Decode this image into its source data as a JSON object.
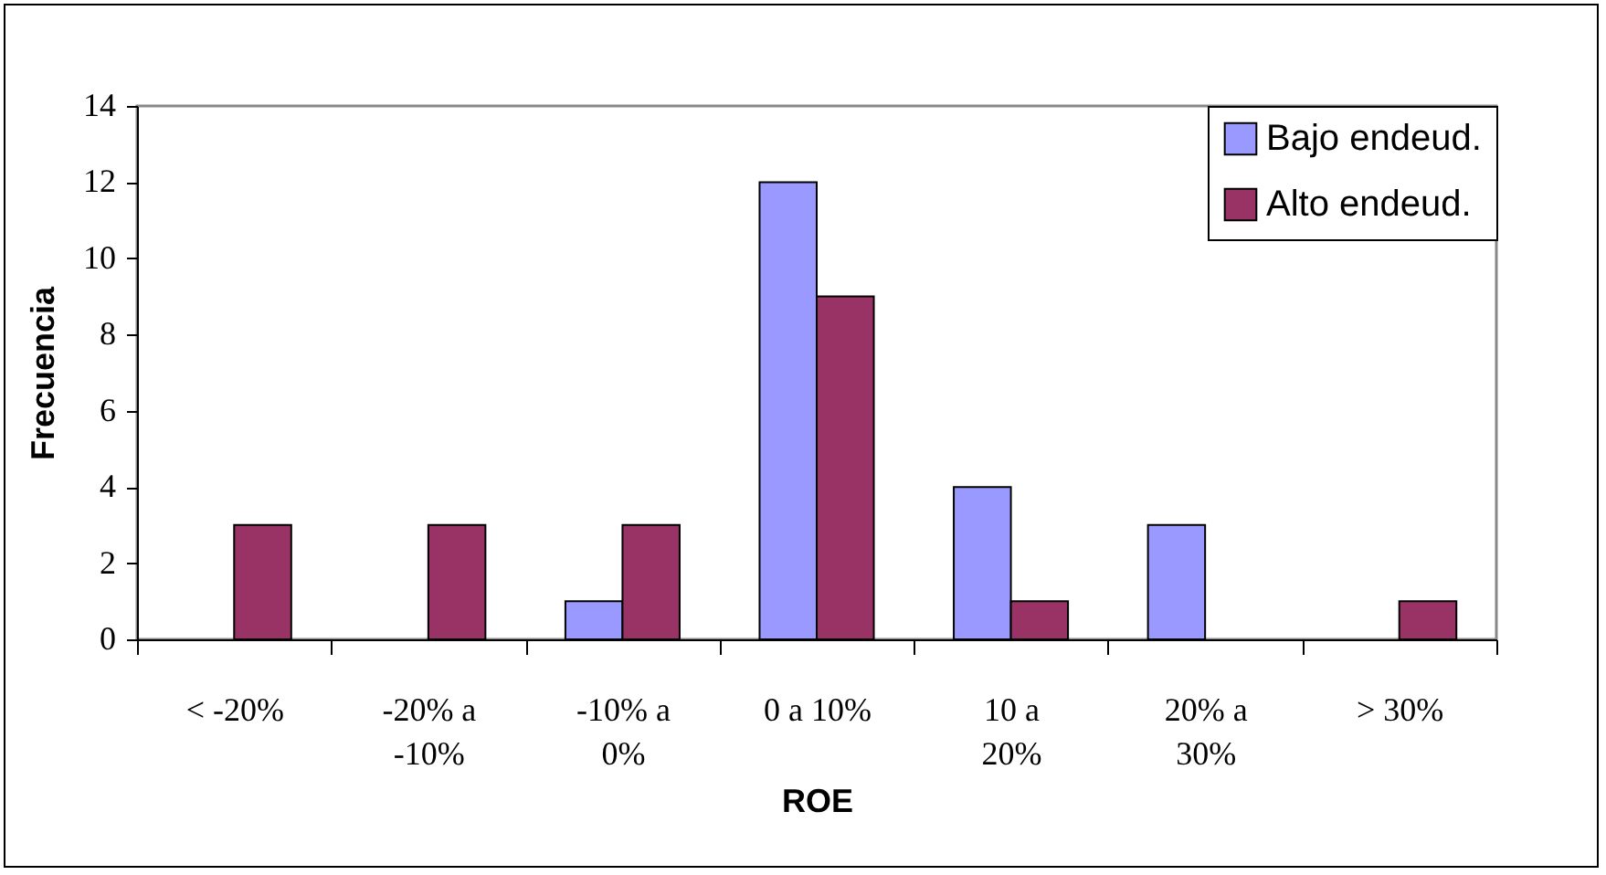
{
  "chart_data": {
    "type": "bar",
    "xlabel": "ROE",
    "ylabel": "Frecuencia",
    "categories": [
      "< -20%",
      "-20% a -10%",
      "-10% a 0%",
      "0 a 10%",
      "10 a 20%",
      "20% a 30%",
      "> 30%"
    ],
    "series": [
      {
        "name": "Bajo endeud.",
        "color": "#9999ff",
        "values": [
          0,
          0,
          1,
          12,
          4,
          3,
          0
        ]
      },
      {
        "name": "Alto endeud.",
        "color": "#993366",
        "values": [
          3,
          3,
          3,
          9,
          1,
          0,
          1
        ]
      }
    ],
    "ylim": [
      0,
      14
    ],
    "yticks": [
      0,
      2,
      4,
      6,
      8,
      10,
      12,
      14
    ],
    "grid": false,
    "legend": "top right"
  }
}
